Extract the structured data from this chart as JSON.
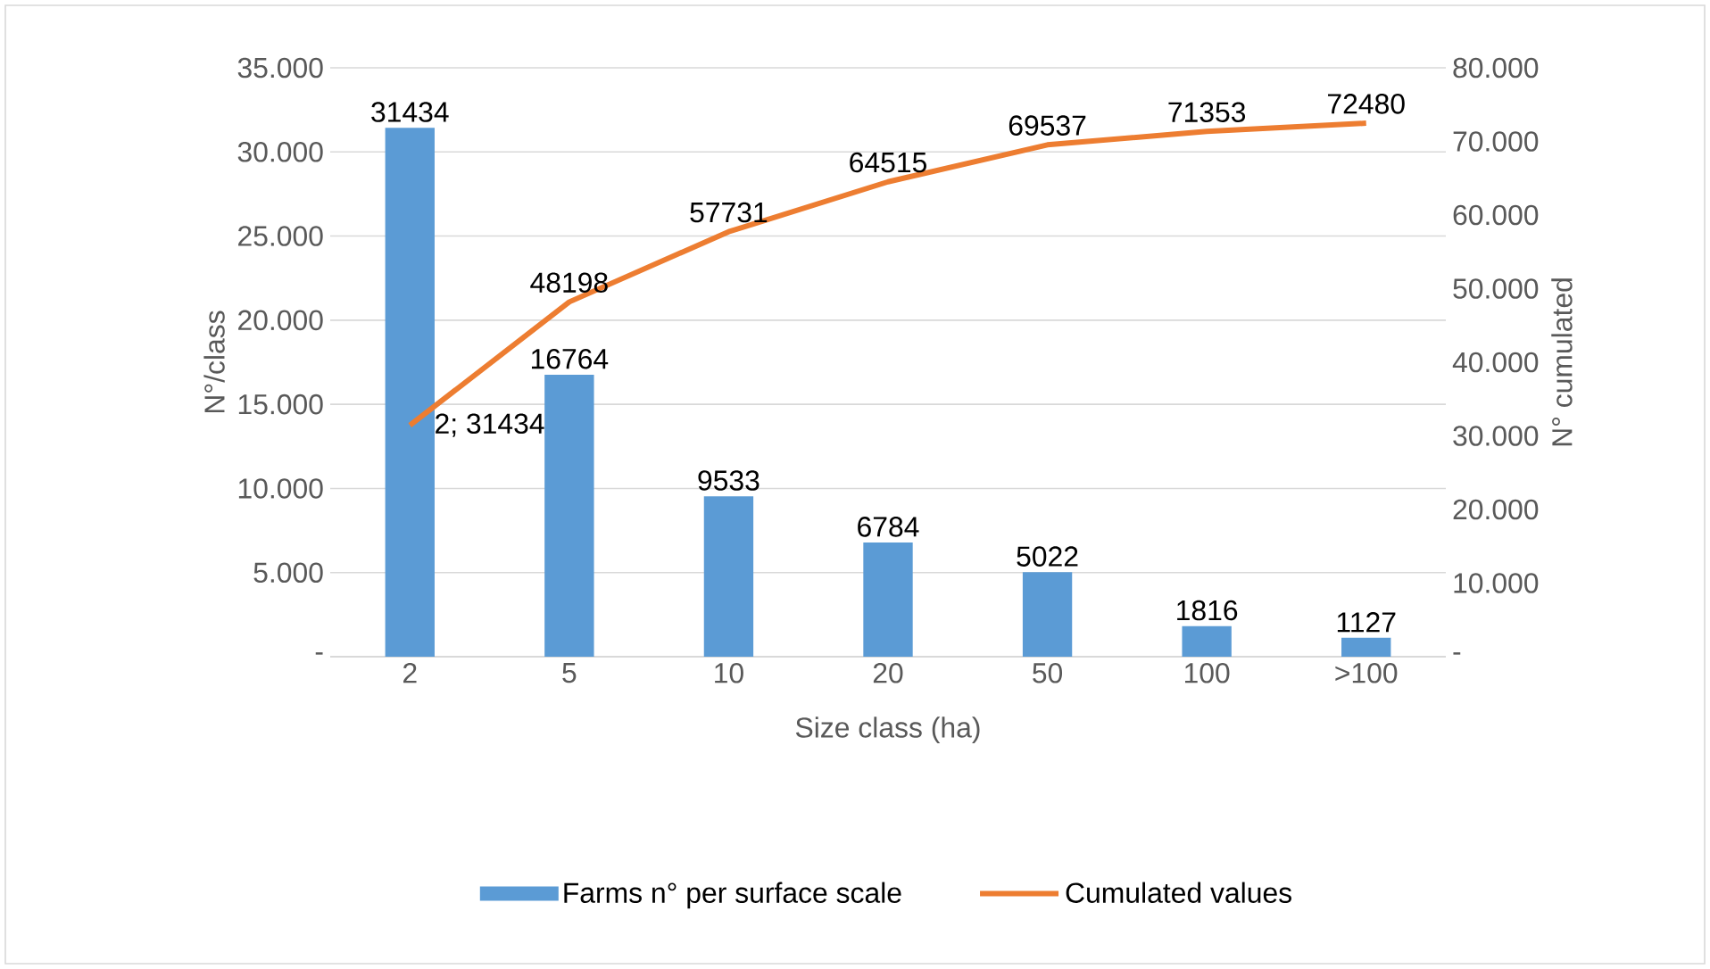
{
  "chart_data": {
    "type": "bar",
    "xlabel": "Size class (ha)",
    "ylabel": "N°/class",
    "y2label": "N° cumulated",
    "categories": [
      "2",
      "5",
      "10",
      "20",
      "50",
      "100",
      ">100"
    ],
    "ylim": [
      0,
      35000
    ],
    "yticks": [
      {
        "value": 0,
        "label": "-"
      },
      {
        "value": 5000,
        "label": "5.000"
      },
      {
        "value": 10000,
        "label": "10.000"
      },
      {
        "value": 15000,
        "label": "15.000"
      },
      {
        "value": 20000,
        "label": "20.000"
      },
      {
        "value": 25000,
        "label": "25.000"
      },
      {
        "value": 30000,
        "label": "30.000"
      },
      {
        "value": 35000,
        "label": "35.000"
      }
    ],
    "y2lim": [
      0,
      80000
    ],
    "y2ticks": [
      {
        "value": 0,
        "label": "-"
      },
      {
        "value": 10000,
        "label": "10.000"
      },
      {
        "value": 20000,
        "label": "20.000"
      },
      {
        "value": 30000,
        "label": "30.000"
      },
      {
        "value": 40000,
        "label": "40.000"
      },
      {
        "value": 50000,
        "label": "50.000"
      },
      {
        "value": 60000,
        "label": "60.000"
      },
      {
        "value": 70000,
        "label": "70.000"
      },
      {
        "value": 80000,
        "label": "80.000"
      }
    ],
    "grid": "y",
    "legend": "bottom",
    "series": [
      {
        "name": "Farms n° per surface scale",
        "color": "#5b9bd5",
        "values": [
          31434,
          16764,
          9533,
          6784,
          5022,
          1816,
          1127
        ],
        "data_labels": true
      },
      {
        "name": "Cumulated values",
        "type": "line",
        "axis": "y2",
        "color": "#ed7d31",
        "values": [
          31434,
          48198,
          57731,
          64515,
          69537,
          71353,
          72480
        ],
        "value_labels": [
          "2; 31434",
          "48198",
          "57731",
          "64515",
          "69537",
          "71353",
          "72480"
        ]
      }
    ]
  }
}
